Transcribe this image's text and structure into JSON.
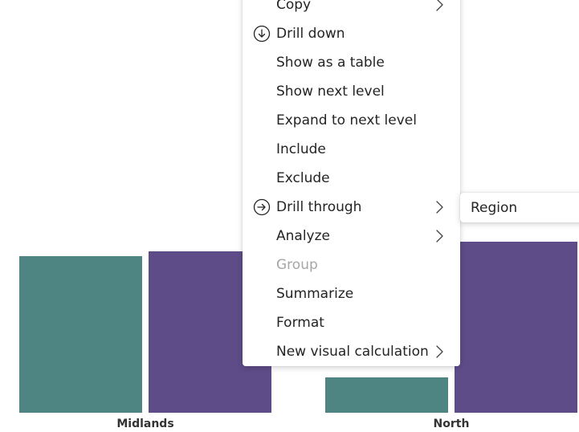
{
  "chart_data": {
    "type": "bar",
    "categories": [
      "Midlands",
      "North"
    ],
    "series": [
      {
        "color": "#4e8481",
        "values": [
          195,
          44
        ]
      },
      {
        "color": "#5e4c88",
        "values": [
          201,
          213
        ]
      }
    ],
    "ylim": [
      0,
      260
    ]
  },
  "context_menu": {
    "items": [
      {
        "label": "Copy",
        "icon": "",
        "submenu": true,
        "disabled": false
      },
      {
        "label": "Drill down",
        "icon": "drill-down-icon",
        "submenu": false,
        "disabled": false
      },
      {
        "label": "Show as a table",
        "icon": "",
        "submenu": false,
        "disabled": false
      },
      {
        "label": "Show next level",
        "icon": "",
        "submenu": false,
        "disabled": false
      },
      {
        "label": "Expand to next level",
        "icon": "",
        "submenu": false,
        "disabled": false
      },
      {
        "label": "Include",
        "icon": "",
        "submenu": false,
        "disabled": false
      },
      {
        "label": "Exclude",
        "icon": "",
        "submenu": false,
        "disabled": false
      },
      {
        "label": "Drill through",
        "icon": "drill-through-icon",
        "submenu": true,
        "disabled": false
      },
      {
        "label": "Analyze",
        "icon": "",
        "submenu": true,
        "disabled": false
      },
      {
        "label": "Group",
        "icon": "",
        "submenu": false,
        "disabled": true
      },
      {
        "label": "Summarize",
        "icon": "",
        "submenu": false,
        "disabled": false
      },
      {
        "label": "Format",
        "icon": "",
        "submenu": false,
        "disabled": false
      },
      {
        "label": "New visual calculation",
        "icon": "",
        "submenu": true,
        "disabled": false
      }
    ]
  },
  "submenu": {
    "items": [
      {
        "label": "Region"
      }
    ]
  }
}
